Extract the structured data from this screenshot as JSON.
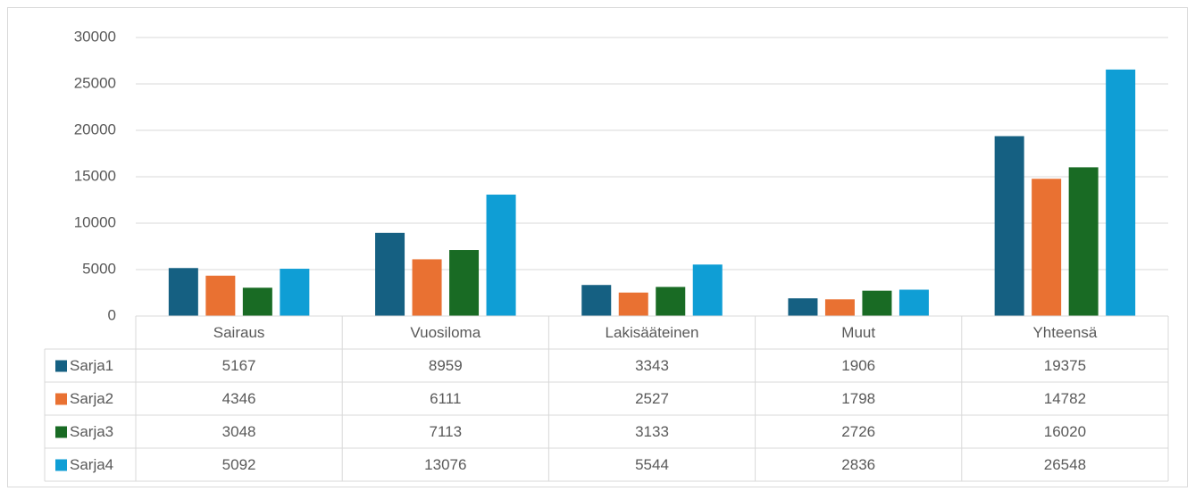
{
  "chart_data": {
    "type": "bar",
    "categories": [
      "Sairaus",
      "Vuosiloma",
      "Lakisääteinen",
      "Muut",
      "Yhteensä"
    ],
    "series": [
      {
        "name": "Sarja1",
        "color": "#156082",
        "values": [
          5167,
          8959,
          3343,
          1906,
          19375
        ]
      },
      {
        "name": "Sarja2",
        "color": "#e97132",
        "values": [
          4346,
          6111,
          2527,
          1798,
          14782
        ]
      },
      {
        "name": "Sarja3",
        "color": "#196b24",
        "values": [
          3048,
          7113,
          3133,
          2726,
          16020
        ]
      },
      {
        "name": "Sarja4",
        "color": "#0f9ed5",
        "values": [
          5092,
          13076,
          5544,
          2836,
          26548
        ]
      }
    ],
    "ylim": [
      0,
      30000
    ],
    "yticks": [
      0,
      5000,
      10000,
      15000,
      20000,
      25000,
      30000
    ],
    "grid": true
  }
}
